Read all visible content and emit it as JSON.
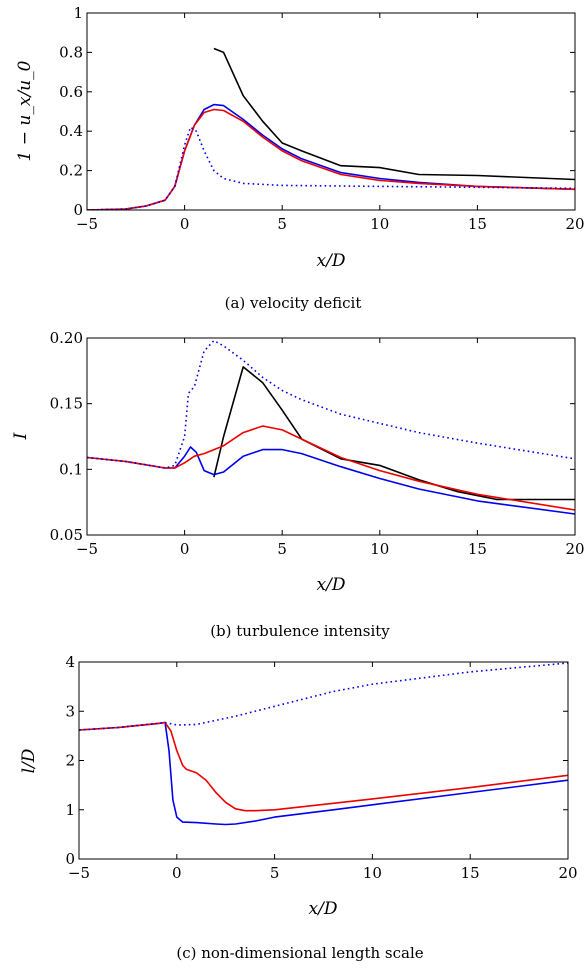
{
  "chart_data": [
    {
      "type": "line",
      "caption": "(a) velocity deficit",
      "xlabel": "x/D",
      "ylabel": "1 − u_x/u_0",
      "xlim": [
        -5,
        20
      ],
      "ylim": [
        0,
        1
      ],
      "xticks": [
        {
          "value": -5,
          "label": "−5"
        },
        {
          "value": 0,
          "label": "0"
        },
        {
          "value": 5,
          "label": "5"
        },
        {
          "value": 10,
          "label": "10"
        },
        {
          "value": 15,
          "label": "15"
        },
        {
          "value": 20,
          "label": "20"
        }
      ],
      "yticks": [
        {
          "value": 0,
          "label": "0"
        },
        {
          "value": 0.2,
          "label": "0.2"
        },
        {
          "value": 0.4,
          "label": "0.4"
        },
        {
          "value": 0.6,
          "label": "0.6"
        },
        {
          "value": 0.8,
          "label": "0.8"
        },
        {
          "value": 1,
          "label": "1"
        }
      ],
      "grid": false,
      "series": [
        {
          "color": "#000000",
          "style": "solid",
          "x": [
            1.5,
            2,
            3,
            4,
            5,
            6,
            8,
            10,
            12,
            15,
            20
          ],
          "y": [
            0.82,
            0.8,
            0.58,
            0.45,
            0.34,
            0.3,
            0.225,
            0.215,
            0.18,
            0.175,
            0.155
          ]
        },
        {
          "color": "#0000ee",
          "style": "solid",
          "x": [
            -5,
            -3,
            -2,
            -1,
            -0.5,
            0,
            0.5,
            1,
            1.5,
            2,
            3,
            4,
            5,
            6,
            8,
            10,
            12,
            15,
            20
          ],
          "y": [
            0,
            0.005,
            0.02,
            0.05,
            0.12,
            0.3,
            0.43,
            0.51,
            0.535,
            0.53,
            0.46,
            0.38,
            0.31,
            0.26,
            0.19,
            0.16,
            0.14,
            0.12,
            0.105
          ]
        },
        {
          "color": "#ee0000",
          "style": "solid",
          "x": [
            -5,
            -3,
            -2,
            -1,
            -0.5,
            0,
            0.5,
            1,
            1.5,
            2,
            3,
            4,
            5,
            6,
            8,
            10,
            12,
            15,
            20
          ],
          "y": [
            0,
            0.005,
            0.02,
            0.05,
            0.12,
            0.3,
            0.43,
            0.495,
            0.51,
            0.505,
            0.45,
            0.37,
            0.3,
            0.25,
            0.18,
            0.15,
            0.135,
            0.12,
            0.105
          ]
        },
        {
          "color": "#0000ee",
          "style": "dotted",
          "x": [
            -5,
            -3,
            -2,
            -1,
            -0.5,
            0,
            0.3,
            0.6,
            1,
            1.5,
            2,
            3,
            5,
            10,
            15,
            20
          ],
          "y": [
            0,
            0.005,
            0.02,
            0.05,
            0.12,
            0.33,
            0.42,
            0.4,
            0.3,
            0.2,
            0.16,
            0.135,
            0.125,
            0.12,
            0.115,
            0.11
          ]
        }
      ]
    },
    {
      "type": "line",
      "caption": "(b) turbulence intensity",
      "xlabel": "x/D",
      "ylabel": "I",
      "xlim": [
        -5,
        20
      ],
      "ylim": [
        0.05,
        0.2
      ],
      "xticks": [
        {
          "value": -5,
          "label": "−5"
        },
        {
          "value": 0,
          "label": "0"
        },
        {
          "value": 5,
          "label": "5"
        },
        {
          "value": 10,
          "label": "10"
        },
        {
          "value": 15,
          "label": "15"
        },
        {
          "value": 20,
          "label": "20"
        }
      ],
      "yticks": [
        {
          "value": 0.05,
          "label": "0.05"
        },
        {
          "value": 0.1,
          "label": "0.1"
        },
        {
          "value": 0.15,
          "label": "0.15"
        },
        {
          "value": 0.2,
          "label": "0.20"
        }
      ],
      "grid": false,
      "series": [
        {
          "color": "#000000",
          "style": "solid",
          "x": [
            1.5,
            2,
            3,
            4,
            5,
            6,
            8,
            10,
            12,
            14,
            16,
            20
          ],
          "y": [
            0.094,
            0.125,
            0.178,
            0.166,
            0.145,
            0.123,
            0.108,
            0.103,
            0.092,
            0.083,
            0.077,
            0.077
          ]
        },
        {
          "color": "#0000ee",
          "style": "solid",
          "x": [
            -5,
            -3,
            -1,
            -0.5,
            0,
            0.3,
            0.6,
            1,
            1.5,
            2,
            3,
            4,
            5,
            6,
            8,
            10,
            12,
            15,
            20
          ],
          "y": [
            0.109,
            0.106,
            0.101,
            0.101,
            0.11,
            0.117,
            0.113,
            0.099,
            0.096,
            0.098,
            0.11,
            0.115,
            0.115,
            0.112,
            0.102,
            0.093,
            0.085,
            0.076,
            0.066
          ]
        },
        {
          "color": "#ee0000",
          "style": "solid",
          "x": [
            -5,
            -3,
            -1,
            -0.5,
            0,
            0.5,
            1,
            2,
            3,
            4,
            5,
            6,
            8,
            10,
            12,
            15,
            20
          ],
          "y": [
            0.109,
            0.106,
            0.101,
            0.101,
            0.105,
            0.11,
            0.112,
            0.118,
            0.128,
            0.133,
            0.13,
            0.123,
            0.109,
            0.099,
            0.091,
            0.081,
            0.069
          ]
        },
        {
          "color": "#0000ee",
          "style": "dotted",
          "x": [
            -5,
            -3,
            -1,
            -0.5,
            0,
            0.2,
            0.5,
            1,
            1.5,
            2,
            3,
            4,
            5,
            6,
            8,
            10,
            12,
            15,
            20
          ],
          "y": [
            0.109,
            0.106,
            0.101,
            0.103,
            0.125,
            0.158,
            0.163,
            0.19,
            0.198,
            0.194,
            0.183,
            0.17,
            0.16,
            0.153,
            0.142,
            0.135,
            0.128,
            0.12,
            0.108
          ]
        }
      ]
    },
    {
      "type": "line",
      "caption": "(c) non-dimensional length scale",
      "xlabel": "x/D",
      "ylabel": "l/D",
      "xlim": [
        -5,
        20
      ],
      "ylim": [
        0,
        4
      ],
      "xticks": [
        {
          "value": -5,
          "label": "−5"
        },
        {
          "value": 0,
          "label": "0"
        },
        {
          "value": 5,
          "label": "5"
        },
        {
          "value": 10,
          "label": "10"
        },
        {
          "value": 15,
          "label": "15"
        },
        {
          "value": 20,
          "label": "20"
        }
      ],
      "yticks": [
        {
          "value": 0,
          "label": "0"
        },
        {
          "value": 1,
          "label": "1"
        },
        {
          "value": 2,
          "label": "2"
        },
        {
          "value": 3,
          "label": "3"
        },
        {
          "value": 4,
          "label": "4"
        }
      ],
      "grid": false,
      "series": [
        {
          "color": "#0000ee",
          "style": "solid",
          "x": [
            -5,
            -3,
            -1,
            -0.6,
            -0.4,
            -0.2,
            0,
            0.3,
            1,
            2,
            2.5,
            3,
            4,
            5,
            8,
            10,
            15,
            20
          ],
          "y": [
            2.62,
            2.67,
            2.75,
            2.77,
            2.2,
            1.2,
            0.85,
            0.75,
            0.74,
            0.71,
            0.7,
            0.71,
            0.77,
            0.85,
            1.0,
            1.1,
            1.35,
            1.6
          ]
        },
        {
          "color": "#ee0000",
          "style": "solid",
          "x": [
            -5,
            -3,
            -1,
            -0.6,
            -0.3,
            0,
            0.3,
            0.5,
            1,
            1.5,
            2,
            2.5,
            3,
            3.5,
            4,
            5,
            8,
            10,
            15,
            20
          ],
          "y": [
            2.62,
            2.67,
            2.75,
            2.77,
            2.6,
            2.2,
            1.9,
            1.82,
            1.75,
            1.6,
            1.35,
            1.15,
            1.02,
            0.98,
            0.98,
            1.0,
            1.13,
            1.22,
            1.45,
            1.7
          ]
        },
        {
          "color": "#0000ee",
          "style": "dotted",
          "x": [
            -5,
            -3,
            -1,
            -0.6,
            0,
            1,
            3,
            5,
            8,
            10,
            15,
            20
          ],
          "y": [
            2.62,
            2.67,
            2.75,
            2.77,
            2.72,
            2.73,
            2.9,
            3.1,
            3.4,
            3.55,
            3.8,
            3.98
          ]
        }
      ]
    }
  ]
}
